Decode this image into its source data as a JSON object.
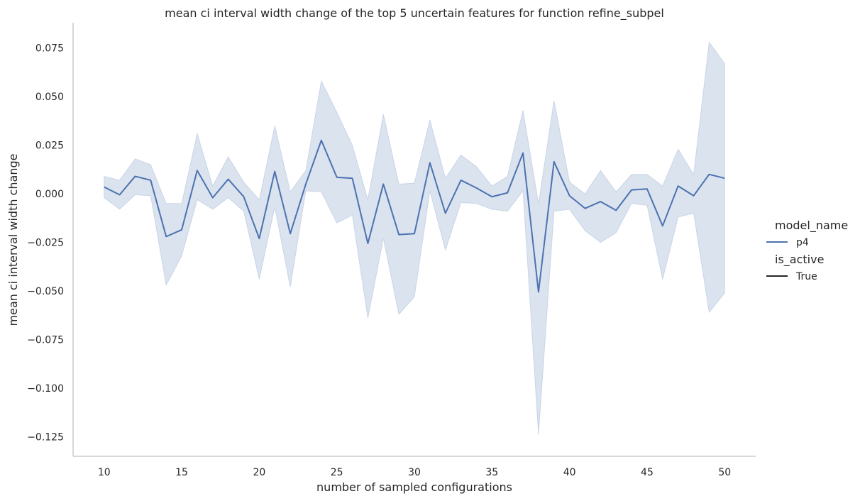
{
  "chart_data": {
    "type": "line",
    "title": "mean ci interval width change of the top 5 uncertain features for function refine_subpel",
    "xlabel": "number of sampled configurations",
    "ylabel": "mean ci interval width change",
    "xlim": [
      8,
      52
    ],
    "ylim": [
      -0.135,
      0.088
    ],
    "xticks": [
      10,
      15,
      20,
      25,
      30,
      35,
      40,
      45,
      50
    ],
    "yticks": [
      0.075,
      0.05,
      0.025,
      0.0,
      -0.025,
      -0.05,
      -0.075,
      -0.1,
      -0.125
    ],
    "ytick_labels": [
      "0.075",
      "0.050",
      "0.025",
      "0.000",
      "−0.025",
      "−0.050",
      "−0.075",
      "−0.100",
      "−0.125"
    ],
    "grid": false,
    "x": [
      10,
      11,
      12,
      13,
      14,
      15,
      16,
      17,
      18,
      19,
      20,
      21,
      22,
      23,
      24,
      25,
      26,
      27,
      28,
      29,
      30,
      31,
      32,
      33,
      34,
      35,
      36,
      37,
      38,
      39,
      40,
      41,
      42,
      43,
      44,
      45,
      46,
      47,
      48,
      49,
      50
    ],
    "series": [
      {
        "name": "p4",
        "color": "#4c72b0",
        "values": [
          0.0035,
          -0.0005,
          0.009,
          0.007,
          -0.022,
          -0.0185,
          0.012,
          -0.002,
          0.0075,
          -0.0015,
          -0.023,
          0.0115,
          -0.0205,
          0.005,
          0.0275,
          0.0085,
          0.008,
          -0.0255,
          0.005,
          -0.021,
          -0.0205,
          0.016,
          -0.01,
          0.007,
          0.003,
          -0.0015,
          0.0005,
          0.021,
          -0.0505,
          0.0165,
          -0.001,
          -0.0075,
          -0.004,
          -0.0085,
          0.002,
          0.0025,
          -0.0165,
          0.004,
          -0.001,
          0.01,
          0.008
        ],
        "ci_upper": [
          0.009,
          0.007,
          0.018,
          0.015,
          -0.005,
          -0.005,
          0.031,
          0.004,
          0.019,
          0.006,
          -0.003,
          0.035,
          0.001,
          0.012,
          0.058,
          0.042,
          0.025,
          -0.003,
          0.041,
          0.005,
          0.0055,
          0.038,
          0.008,
          0.02,
          0.014,
          0.004,
          0.009,
          0.043,
          -0.005,
          0.048,
          0.006,
          0.0,
          0.012,
          0.001,
          0.01,
          0.01,
          0.004,
          0.023,
          0.01,
          0.078,
          0.067
        ],
        "ci_lower": [
          -0.002,
          -0.008,
          -0.0005,
          -0.001,
          -0.047,
          -0.032,
          -0.003,
          -0.008,
          -0.002,
          -0.009,
          -0.044,
          -0.007,
          -0.048,
          0.0015,
          0.001,
          -0.015,
          -0.011,
          -0.064,
          -0.023,
          -0.062,
          -0.053,
          0.0015,
          -0.029,
          -0.0045,
          -0.005,
          -0.008,
          -0.009,
          0.0015,
          -0.124,
          -0.009,
          -0.008,
          -0.019,
          -0.025,
          -0.02,
          -0.005,
          -0.006,
          -0.044,
          -0.012,
          -0.01,
          -0.061,
          -0.051
        ]
      }
    ],
    "legend": {
      "placement": "right",
      "hue_title": "model_name",
      "hue_entry": "p4",
      "style_title": "is_active",
      "style_entry": "True",
      "style_color": "#262626"
    },
    "band_color": "#4c72b0",
    "band_opacity": 0.2,
    "axis_color": "#cccccc"
  }
}
